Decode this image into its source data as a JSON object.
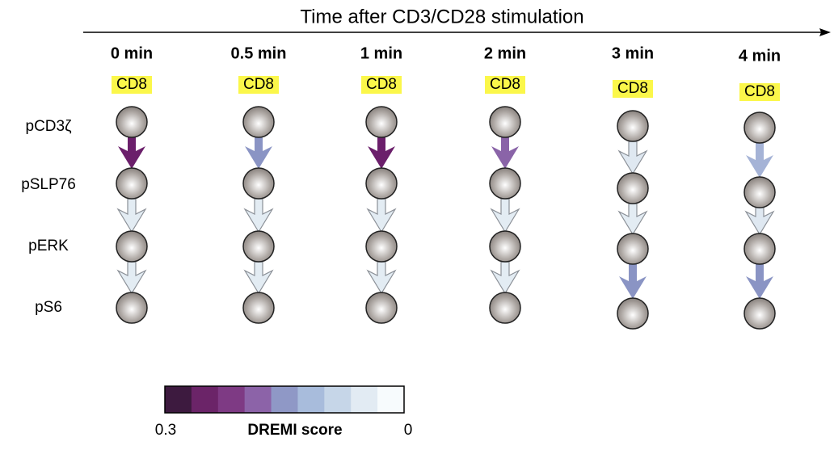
{
  "title": "Time after CD3/CD28 stimulation",
  "rows": [
    "pCD3ζ",
    "pSLP76",
    "pERK",
    "pS6"
  ],
  "columns": [
    {
      "time": "0 min",
      "cell": "CD8",
      "arrow_colors": [
        "#6b1f6b",
        "#e3ecf3",
        "#e3ecf3"
      ]
    },
    {
      "time": "0.5 min",
      "cell": "CD8",
      "arrow_colors": [
        "#8a94c4",
        "#e3ecf3",
        "#e3ecf3"
      ]
    },
    {
      "time": "1 min",
      "cell": "CD8",
      "arrow_colors": [
        "#6b1f6b",
        "#e3ecf3",
        "#e3ecf3"
      ]
    },
    {
      "time": "2 min",
      "cell": "CD8",
      "arrow_colors": [
        "#8a64a8",
        "#e3ecf3",
        "#e3ecf3"
      ]
    },
    {
      "time": "3 min",
      "cell": "CD8",
      "arrow_colors": [
        "#dfe8f1",
        "#e3ecf3",
        "#8a94c4"
      ]
    },
    {
      "time": "4 min",
      "cell": "CD8",
      "arrow_colors": [
        "#a5b3d6",
        "#dfe8f1",
        "#8a94c4"
      ]
    }
  ],
  "colorbar": {
    "min_label": "0.3",
    "title": "DREMI score",
    "max_label": "0",
    "colors": [
      "#3d1a3f",
      "#6b2468",
      "#7e3a84",
      "#8c63a8",
      "#8f98c6",
      "#a8bcdc",
      "#c6d6e8",
      "#e2ebf3",
      "#f7fbfd"
    ]
  }
}
